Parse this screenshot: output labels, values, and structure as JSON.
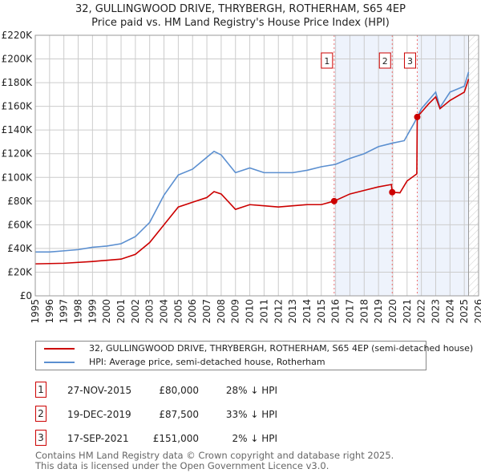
{
  "title": "32, GULLINGWOOD DRIVE, THRYBERGH, ROTHERHAM, S65 4EP",
  "subtitle": "Price paid vs. HM Land Registry's House Price Index (HPI)",
  "chart_data": {
    "type": "line",
    "xlim": [
      1995,
      2026
    ],
    "ylim": [
      0,
      220000
    ],
    "xticks": [
      1995,
      1996,
      1997,
      1998,
      1999,
      2000,
      2001,
      2002,
      2003,
      2004,
      2005,
      2006,
      2007,
      2008,
      2009,
      2010,
      2011,
      2012,
      2013,
      2014,
      2015,
      2016,
      2017,
      2018,
      2019,
      2020,
      2021,
      2022,
      2023,
      2024,
      2025,
      2026
    ],
    "yticks": [
      0,
      20000,
      40000,
      60000,
      80000,
      100000,
      120000,
      140000,
      160000,
      180000,
      200000,
      220000
    ],
    "ytick_labels": [
      "£0",
      "£20K",
      "£40K",
      "£60K",
      "£80K",
      "£100K",
      "£120K",
      "£140K",
      "£160K",
      "£180K",
      "£200K",
      "£220K"
    ],
    "grid": true,
    "shaded_ranges": [
      [
        2015.9,
        2019.96
      ],
      [
        2021.71,
        2025.3
      ]
    ],
    "hatched_from": 2025.3,
    "series": [
      {
        "name": "32, GULLINGWOOD DRIVE, THRYBERGH, ROTHERHAM, S65 4EP (semi-detached house)",
        "color": "#cc0000",
        "x": [
          1995,
          1997,
          1999,
          2000,
          2001,
          2002,
          2003,
          2004,
          2005,
          2006,
          2007,
          2007.5,
          2008,
          2009,
          2010,
          2011,
          2012,
          2013,
          2014,
          2015,
          2015.9,
          2017,
          2018,
          2019,
          2019.9,
          2019.96,
          2020.5,
          2021,
          2021.68,
          2021.71,
          2022,
          2022.5,
          2023,
          2023.3,
          2024,
          2025,
          2025.3
        ],
        "y": [
          27000,
          27500,
          29000,
          30000,
          31000,
          35000,
          45000,
          60000,
          75000,
          79000,
          83000,
          88000,
          86000,
          73000,
          77000,
          76000,
          75000,
          76000,
          77000,
          77000,
          80000,
          86000,
          89000,
          92000,
          94000,
          87500,
          87000,
          97000,
          103000,
          151000,
          155000,
          162000,
          168000,
          158000,
          165000,
          172000,
          183000
        ]
      },
      {
        "name": "HPI: Average price, semi-detached house, Rotherham",
        "color": "#5b8fd0",
        "x": [
          1995,
          1996,
          1997,
          1998,
          1999,
          2000,
          2001,
          2002,
          2003,
          2004,
          2005,
          2006,
          2007,
          2007.5,
          2008,
          2009,
          2010,
          2011,
          2012,
          2013,
          2014,
          2015,
          2016,
          2017,
          2018,
          2019,
          2020,
          2020.8,
          2021.5,
          2022,
          2022.5,
          2023,
          2023.3,
          2024,
          2025,
          2025.3
        ],
        "y": [
          37000,
          37000,
          38000,
          39000,
          41000,
          42000,
          44000,
          50000,
          62000,
          85000,
          102000,
          107000,
          117000,
          122000,
          119000,
          104000,
          108000,
          104000,
          104000,
          104000,
          106000,
          109000,
          111000,
          116000,
          120000,
          126000,
          129000,
          131000,
          146000,
          158000,
          165000,
          172000,
          159000,
          172000,
          177000,
          189000
        ]
      }
    ],
    "sales": [
      {
        "label": "1",
        "x": 2015.9,
        "y": 80000,
        "date": "27-NOV-2015",
        "price": "£80,000",
        "hpi": "28% ↓ HPI"
      },
      {
        "label": "2",
        "x": 2019.96,
        "y": 87500,
        "date": "19-DEC-2019",
        "price": "£87,500",
        "hpi": "33% ↓ HPI"
      },
      {
        "label": "3",
        "x": 2021.71,
        "y": 151000,
        "date": "17-SEP-2021",
        "price": "£151,000",
        "hpi": "2% ↓ HPI"
      }
    ]
  },
  "footer": [
    "Contains HM Land Registry data © Crown copyright and database right 2025.",
    "This data is licensed under the Open Government Licence v3.0."
  ]
}
